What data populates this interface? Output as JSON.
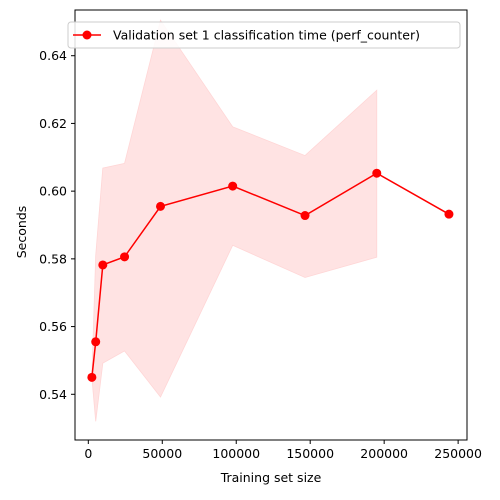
{
  "chart_data": {
    "type": "line",
    "title": "",
    "xlabel": "Training set size",
    "ylabel": "Seconds",
    "xlim": [
      -9000,
      256000
    ],
    "ylim": [
      0.5265,
      0.6535
    ],
    "xticks": [
      0,
      50000,
      100000,
      150000,
      200000,
      250000
    ],
    "xtick_labels": [
      "0",
      "50000",
      "100000",
      "150000",
      "200000",
      "250000"
    ],
    "yticks": [
      0.54,
      0.56,
      0.58,
      0.6,
      0.62,
      0.64
    ],
    "ytick_labels": [
      "0.54",
      "0.56",
      "0.58",
      "0.60",
      "0.62",
      "0.64"
    ],
    "grid": false,
    "legend_position": "top",
    "series": [
      {
        "name": "Validation set 1 classification time (perf_counter)",
        "color": "#ff0000",
        "marker": "circle",
        "x": [
          2400,
          5000,
          9800,
          24500,
          48800,
          97600,
          146500,
          195000,
          243800
        ],
        "y": [
          0.545,
          0.5555,
          0.5782,
          0.5806,
          0.5955,
          0.6015,
          0.5928,
          0.6053,
          0.5932
        ],
        "band_upper": [
          0.545,
          0.581,
          0.6068,
          0.6082,
          0.6505,
          0.619,
          0.6105,
          0.6298,
          null
        ],
        "band_lower": [
          0.545,
          0.532,
          0.5492,
          0.5528,
          0.5392,
          0.584,
          0.5745,
          0.5805,
          null
        ],
        "band_color": "#ffe3e3"
      }
    ]
  }
}
